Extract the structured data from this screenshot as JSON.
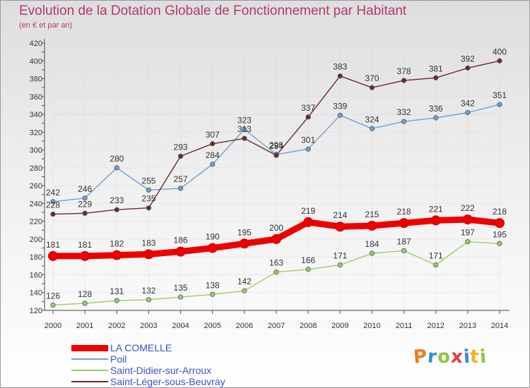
{
  "header": {
    "title": "Evolution de la Dotation Globale de Fonctionnement par Habitant",
    "subtitle": "(en € et par an)"
  },
  "logo": {
    "text": "Proxiti",
    "letter_colors": [
      "#f07d1b",
      "#2d8fd6",
      "#8cc63f",
      "#e23d3d",
      "#2d8fd6",
      "#f5b317",
      "#8cc63f"
    ]
  },
  "chart_data": {
    "type": "line",
    "title": "Evolution de la Dotation Globale de Fonctionnement par Habitant",
    "subtitle": "(en € et par an)",
    "xlabel": "",
    "ylabel": "",
    "x": [
      "2000",
      "2001",
      "2002",
      "2003",
      "2004",
      "2005",
      "2006",
      "2007",
      "2008",
      "2009",
      "2010",
      "2011",
      "2012",
      "2013",
      "2014"
    ],
    "ylim": [
      120,
      420
    ],
    "yticks": [
      120,
      140,
      160,
      180,
      200,
      220,
      240,
      260,
      280,
      300,
      320,
      340,
      360,
      380,
      400,
      420
    ],
    "grid": "horizontal",
    "legend": "bottom-left",
    "series": [
      {
        "name": "LA COMELLE",
        "color": "#ee0000",
        "emphasis": true,
        "values": [
          181,
          181,
          182,
          183,
          186,
          190,
          195,
          200,
          219,
          214,
          215,
          218,
          221,
          222,
          218
        ]
      },
      {
        "name": "Poil",
        "color": "#6fa0d0",
        "values": [
          242,
          246,
          280,
          255,
          257,
          284,
          323,
          295,
          301,
          339,
          324,
          332,
          336,
          342,
          351
        ]
      },
      {
        "name": "Saint-Didier-sur-Arroux",
        "color": "#9ccc6a",
        "values": [
          126,
          128,
          131,
          132,
          135,
          138,
          142,
          163,
          166,
          171,
          184,
          187,
          171,
          197,
          195
        ]
      },
      {
        "name": "Saint-Léger-sous-Beuvray",
        "color": "#6a2a2a",
        "values": [
          228,
          229,
          233,
          235,
          293,
          307,
          313,
          294,
          337,
          383,
          370,
          378,
          381,
          392,
          400
        ]
      }
    ]
  }
}
